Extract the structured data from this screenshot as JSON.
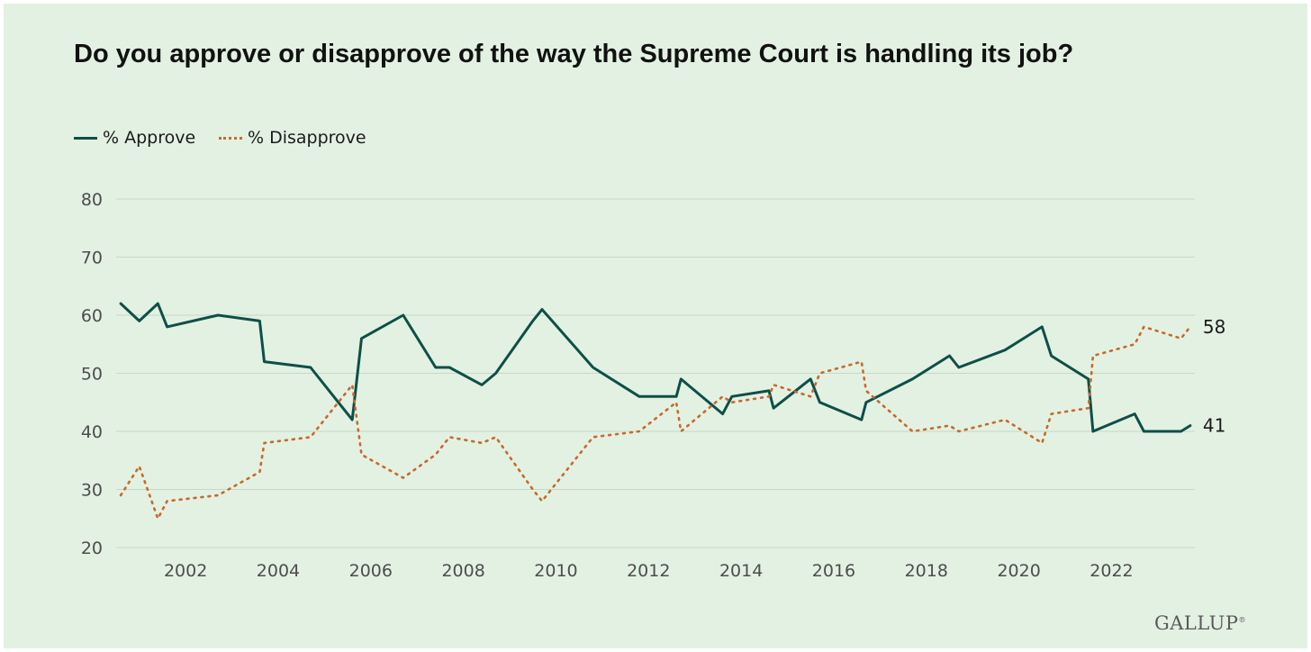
{
  "title": "Do you approve or disapprove of the way the Supreme Court is handling its job?",
  "brand": "GALLUP",
  "colors": {
    "background": "#e3f1e2",
    "approve": "#0e4f48",
    "disapprove": "#c56a2c",
    "grid": "#c8d8c8"
  },
  "chart_data": {
    "type": "line",
    "title": "Do you approve or disapprove of the way the Supreme Court is handling its job?",
    "xlabel": "",
    "ylabel": "",
    "xlim": [
      2000.5,
      2023.8
    ],
    "ylim": [
      20,
      80
    ],
    "yticks": [
      20,
      30,
      40,
      50,
      60,
      70,
      80
    ],
    "xticks": [
      2002,
      2004,
      2006,
      2008,
      2010,
      2012,
      2014,
      2016,
      2018,
      2020,
      2022
    ],
    "grid": true,
    "legend_position": "top-left",
    "series": [
      {
        "name": "% Approve",
        "style": "solid",
        "end_label": "41",
        "points": [
          [
            2000.6,
            62
          ],
          [
            2001.0,
            59
          ],
          [
            2001.4,
            62
          ],
          [
            2001.6,
            58
          ],
          [
            2002.7,
            60
          ],
          [
            2003.6,
            59
          ],
          [
            2003.7,
            52
          ],
          [
            2004.7,
            51
          ],
          [
            2005.6,
            42
          ],
          [
            2005.8,
            56
          ],
          [
            2006.7,
            60
          ],
          [
            2007.4,
            51
          ],
          [
            2007.7,
            51
          ],
          [
            2008.4,
            48
          ],
          [
            2008.7,
            50
          ],
          [
            2009.5,
            59
          ],
          [
            2009.7,
            61
          ],
          [
            2010.8,
            51
          ],
          [
            2011.8,
            46
          ],
          [
            2012.6,
            46
          ],
          [
            2012.7,
            49
          ],
          [
            2013.6,
            43
          ],
          [
            2013.8,
            46
          ],
          [
            2014.6,
            47
          ],
          [
            2014.7,
            44
          ],
          [
            2015.5,
            49
          ],
          [
            2015.7,
            45
          ],
          [
            2016.6,
            42
          ],
          [
            2016.7,
            45
          ],
          [
            2017.7,
            49
          ],
          [
            2018.5,
            53
          ],
          [
            2018.7,
            51
          ],
          [
            2019.7,
            54
          ],
          [
            2020.5,
            58
          ],
          [
            2020.7,
            53
          ],
          [
            2021.5,
            49
          ],
          [
            2021.6,
            40
          ],
          [
            2022.5,
            43
          ],
          [
            2022.7,
            40
          ],
          [
            2023.5,
            40
          ],
          [
            2023.7,
            41
          ]
        ]
      },
      {
        "name": "% Disapprove",
        "style": "dotted",
        "end_label": "58",
        "points": [
          [
            2000.6,
            29
          ],
          [
            2001.0,
            34
          ],
          [
            2001.4,
            25
          ],
          [
            2001.6,
            28
          ],
          [
            2002.7,
            29
          ],
          [
            2003.6,
            33
          ],
          [
            2003.7,
            38
          ],
          [
            2004.7,
            39
          ],
          [
            2005.6,
            48
          ],
          [
            2005.8,
            36
          ],
          [
            2006.7,
            32
          ],
          [
            2007.4,
            36
          ],
          [
            2007.7,
            39
          ],
          [
            2008.4,
            38
          ],
          [
            2008.7,
            39
          ],
          [
            2009.5,
            30
          ],
          [
            2009.7,
            28
          ],
          [
            2010.8,
            39
          ],
          [
            2011.8,
            40
          ],
          [
            2012.6,
            45
          ],
          [
            2012.7,
            40
          ],
          [
            2013.6,
            46
          ],
          [
            2013.8,
            45
          ],
          [
            2014.6,
            46
          ],
          [
            2014.7,
            48
          ],
          [
            2015.5,
            46
          ],
          [
            2015.7,
            50
          ],
          [
            2016.6,
            52
          ],
          [
            2016.7,
            47
          ],
          [
            2017.7,
            40
          ],
          [
            2018.5,
            41
          ],
          [
            2018.7,
            40
          ],
          [
            2019.7,
            42
          ],
          [
            2020.5,
            38
          ],
          [
            2020.7,
            43
          ],
          [
            2021.5,
            44
          ],
          [
            2021.6,
            53
          ],
          [
            2022.5,
            55
          ],
          [
            2022.7,
            58
          ],
          [
            2023.5,
            56
          ],
          [
            2023.7,
            58
          ]
        ]
      }
    ]
  }
}
